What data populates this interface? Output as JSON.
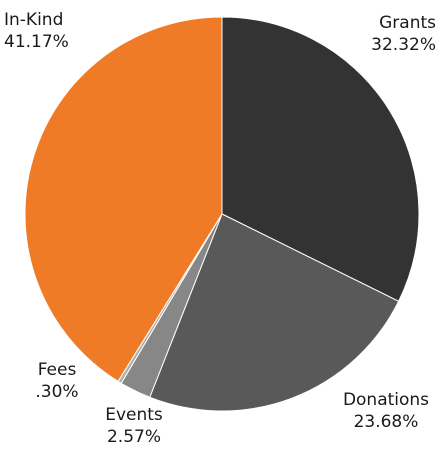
{
  "chart_data": {
    "type": "pie",
    "title": "",
    "slices": [
      {
        "label": "Grants",
        "value": 32.32,
        "display": "32.32%",
        "color": "#333333"
      },
      {
        "label": "Donations",
        "value": 23.68,
        "display": "23.68%",
        "color": "#595959"
      },
      {
        "label": "Events",
        "value": 2.57,
        "display": "2.57%",
        "color": "#878787"
      },
      {
        "label": "Fees",
        "value": 0.3,
        "display": ".30%",
        "color": "#b0b0b0"
      },
      {
        "label": "In-Kind",
        "value": 41.17,
        "display": "41.17%",
        "color": "#f07b27"
      }
    ],
    "start_angle": "12 o'clock",
    "direction": "clockwise",
    "slice_border_color": "#ffffff",
    "legend": "none"
  }
}
